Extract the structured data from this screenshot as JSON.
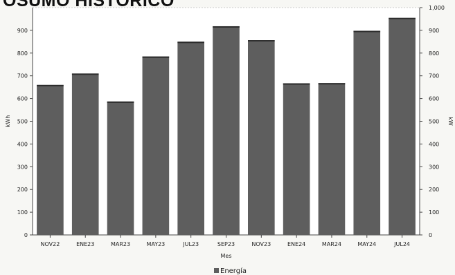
{
  "header": {
    "title": "OSUMO HISTÓRICO"
  },
  "chart_data": {
    "type": "bar",
    "categories": [
      "NOV22",
      "ENE23",
      "MAR23",
      "MAY23",
      "JUL23",
      "SEP23",
      "NOV23",
      "ENE24",
      "MAR24",
      "MAY24",
      "JUL24"
    ],
    "series": [
      {
        "name": "Energía",
        "values": [
          660,
          710,
          587,
          785,
          850,
          918,
          857,
          667,
          668,
          898,
          955
        ]
      }
    ],
    "xlabel": "Mes",
    "ylabel": "kWh",
    "ylabel_right": "kW",
    "ylim": [
      0,
      1000
    ],
    "yticks": [
      0,
      100,
      200,
      300,
      400,
      500,
      600,
      700,
      800,
      900
    ],
    "yticks_right": [
      "0",
      "100",
      "200",
      "300",
      "400",
      "500",
      "600",
      "700",
      "800",
      "900",
      "1,000"
    ],
    "grid": false,
    "legend": "bottom-center",
    "colors": {
      "bar": "#5e5e5e",
      "bar_top": "#2c2c2c",
      "axis": "#444444",
      "text": "#222222"
    }
  }
}
